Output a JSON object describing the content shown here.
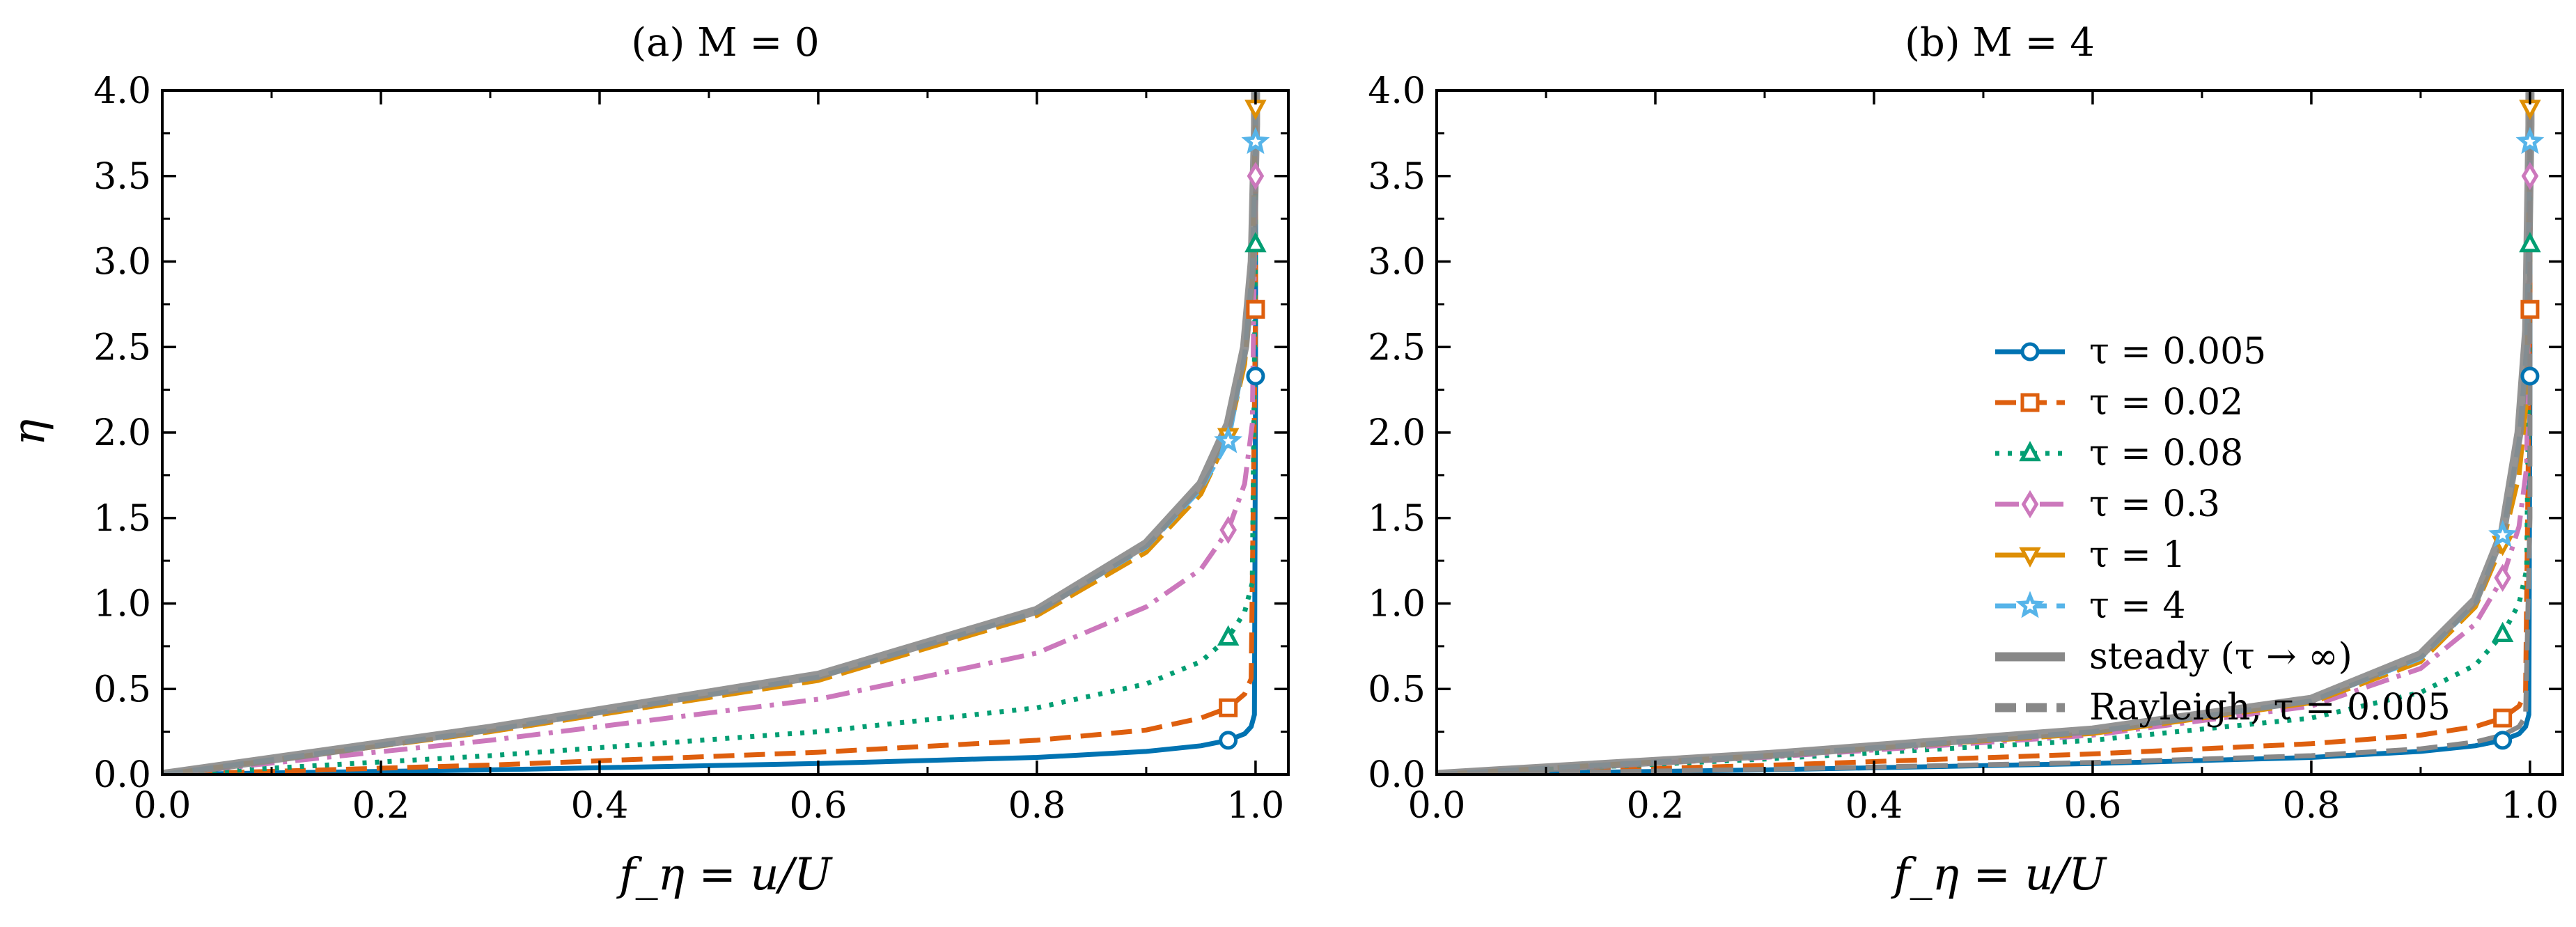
{
  "chart_data": [
    {
      "type": "line",
      "title": "(a) M = 0",
      "xlabel": "f_η = u/U",
      "ylabel": "η",
      "xlim": [
        0.0,
        1.03
      ],
      "ylim": [
        0.0,
        4.0
      ],
      "xticks": [
        "0.0",
        "0.2",
        "0.4",
        "0.6",
        "0.8",
        "1.0"
      ],
      "yticks": [
        "0.0",
        "0.5",
        "1.0",
        "1.5",
        "2.0",
        "2.5",
        "3.0",
        "3.5",
        "4.0"
      ],
      "grid": false,
      "series": [
        {
          "name": "τ = 0.005",
          "color": "#0173b2",
          "dash": "solid",
          "marker": "circle",
          "x": [
            0.0,
            0.3,
            0.6,
            0.8,
            0.9,
            0.95,
            0.975,
            0.99,
            0.996,
            0.999,
            1.0,
            1.0
          ],
          "y": [
            0.0,
            0.027,
            0.064,
            0.1,
            0.135,
            0.168,
            0.2,
            0.238,
            0.28,
            0.35,
            2.33,
            4.0
          ]
        },
        {
          "name": "τ = 0.02",
          "color": "#de5f0e",
          "dash": "dash",
          "marker": "square",
          "x": [
            0.0,
            0.3,
            0.6,
            0.8,
            0.9,
            0.95,
            0.975,
            0.99,
            0.996,
            1.0,
            1.0
          ],
          "y": [
            0.0,
            0.055,
            0.13,
            0.2,
            0.26,
            0.33,
            0.39,
            0.47,
            0.56,
            2.72,
            4.0
          ]
        },
        {
          "name": "τ = 0.08",
          "color": "#029e73",
          "dash": "dot",
          "marker": "triangle-up",
          "x": [
            0.0,
            0.3,
            0.6,
            0.8,
            0.9,
            0.95,
            0.975,
            0.99,
            0.997,
            1.0,
            1.0
          ],
          "y": [
            0.0,
            0.11,
            0.25,
            0.39,
            0.53,
            0.66,
            0.8,
            0.95,
            1.12,
            3.1,
            4.0
          ]
        },
        {
          "name": "τ = 0.3",
          "color": "#cc78bc",
          "dash": "dashdot",
          "marker": "diamond",
          "x": [
            0.0,
            0.3,
            0.6,
            0.8,
            0.9,
            0.95,
            0.975,
            0.99,
            0.997,
            1.0,
            1.0
          ],
          "y": [
            0.0,
            0.2,
            0.44,
            0.71,
            0.98,
            1.2,
            1.43,
            1.7,
            2.05,
            3.5,
            4.0
          ]
        },
        {
          "name": "τ = 1",
          "color": "#de8f05",
          "dash": "longdash",
          "marker": "triangle-down",
          "x": [
            0.0,
            0.3,
            0.6,
            0.8,
            0.9,
            0.95,
            0.975,
            0.99,
            0.997,
            1.0,
            1.0
          ],
          "y": [
            0.0,
            0.25,
            0.55,
            0.93,
            1.3,
            1.64,
            1.98,
            2.4,
            2.9,
            3.9,
            4.0
          ]
        },
        {
          "name": "τ = 4",
          "color": "#56b4e9",
          "dash": "dash",
          "marker": "star",
          "x": [
            0.0,
            0.3,
            0.6,
            0.8,
            0.9,
            0.95,
            0.975,
            0.99,
            0.997,
            1.0,
            1.0
          ],
          "y": [
            0.0,
            0.26,
            0.57,
            0.95,
            1.33,
            1.67,
            1.95,
            2.45,
            2.95,
            3.7,
            4.0
          ]
        },
        {
          "name": "steady (τ → ∞)",
          "color": "#888888",
          "dash": "solid",
          "marker": "none",
          "x": [
            0.0,
            0.3,
            0.6,
            0.8,
            0.9,
            0.95,
            0.975,
            0.99,
            0.997,
            1.0,
            1.0
          ],
          "y": [
            0.0,
            0.27,
            0.58,
            0.96,
            1.35,
            1.7,
            2.05,
            2.5,
            3.0,
            3.8,
            4.0
          ]
        }
      ]
    },
    {
      "type": "line",
      "title": "(b) M = 4",
      "xlabel": "f_η = u/U",
      "ylabel": "",
      "xlim": [
        0.0,
        1.03
      ],
      "ylim": [
        0.0,
        4.0
      ],
      "xticks": [
        "0.0",
        "0.2",
        "0.4",
        "0.6",
        "0.8",
        "1.0"
      ],
      "yticks": [
        "0.0",
        "0.5",
        "1.0",
        "1.5",
        "2.0",
        "2.5",
        "3.0",
        "3.5",
        "4.0"
      ],
      "grid": false,
      "legend_position": "center-right",
      "series": [
        {
          "name": "τ = 0.005",
          "color": "#0173b2",
          "dash": "solid",
          "marker": "circle",
          "x": [
            0.0,
            0.3,
            0.6,
            0.8,
            0.9,
            0.95,
            0.975,
            0.99,
            0.996,
            0.999,
            1.0,
            1.0
          ],
          "y": [
            0.0,
            0.027,
            0.064,
            0.1,
            0.135,
            0.168,
            0.2,
            0.238,
            0.28,
            0.35,
            2.33,
            4.0
          ]
        },
        {
          "name": "τ = 0.02",
          "color": "#de5f0e",
          "dash": "dash",
          "marker": "square",
          "x": [
            0.0,
            0.3,
            0.6,
            0.8,
            0.9,
            0.95,
            0.975,
            0.99,
            0.996,
            1.0,
            1.0
          ],
          "y": [
            0.0,
            0.053,
            0.12,
            0.18,
            0.23,
            0.28,
            0.33,
            0.4,
            0.48,
            2.72,
            4.0
          ]
        },
        {
          "name": "τ = 0.08",
          "color": "#029e73",
          "dash": "dot",
          "marker": "triangle-up",
          "x": [
            0.0,
            0.3,
            0.6,
            0.8,
            0.9,
            0.95,
            0.975,
            0.99,
            0.997,
            1.0,
            1.0
          ],
          "y": [
            0.0,
            0.09,
            0.2,
            0.33,
            0.48,
            0.64,
            0.82,
            1.0,
            1.2,
            3.1,
            4.0
          ]
        },
        {
          "name": "τ = 0.3",
          "color": "#cc78bc",
          "dash": "dashdot",
          "marker": "diamond",
          "x": [
            0.0,
            0.3,
            0.6,
            0.8,
            0.9,
            0.95,
            0.975,
            0.99,
            0.997,
            1.0,
            1.0
          ],
          "y": [
            0.0,
            0.1,
            0.23,
            0.4,
            0.62,
            0.88,
            1.15,
            1.45,
            1.8,
            3.5,
            4.0
          ]
        },
        {
          "name": "τ = 1",
          "color": "#de8f05",
          "dash": "longdash",
          "marker": "triangle-down",
          "x": [
            0.0,
            0.3,
            0.6,
            0.8,
            0.9,
            0.95,
            0.975,
            0.99,
            0.997,
            1.0,
            1.0
          ],
          "y": [
            0.0,
            0.11,
            0.24,
            0.42,
            0.66,
            0.98,
            1.35,
            1.75,
            2.2,
            3.9,
            4.0
          ]
        },
        {
          "name": "τ = 4",
          "color": "#56b4e9",
          "dash": "dash",
          "marker": "star",
          "x": [
            0.0,
            0.3,
            0.6,
            0.8,
            0.9,
            0.95,
            0.975,
            0.99,
            0.997,
            1.0,
            1.0
          ],
          "y": [
            0.0,
            0.11,
            0.25,
            0.43,
            0.68,
            1.0,
            1.4,
            1.95,
            2.5,
            3.7,
            4.0
          ]
        },
        {
          "name": "steady (τ → ∞)",
          "color": "#888888",
          "dash": "solid",
          "marker": "none",
          "x": [
            0.0,
            0.3,
            0.6,
            0.8,
            0.9,
            0.95,
            0.975,
            0.99,
            0.997,
            1.0,
            1.0
          ],
          "y": [
            0.0,
            0.115,
            0.26,
            0.44,
            0.7,
            1.02,
            1.42,
            2.0,
            2.6,
            3.8,
            4.0
          ]
        },
        {
          "name": "Rayleigh, τ = 0.005",
          "color": "#888888",
          "dash": "dash",
          "marker": "none",
          "x": [
            0.0,
            0.3,
            0.6,
            0.8,
            0.9,
            0.95,
            0.975,
            0.99,
            0.996,
            1.0,
            1.0
          ],
          "y": [
            0.0,
            0.03,
            0.07,
            0.11,
            0.15,
            0.19,
            0.23,
            0.28,
            0.34,
            1.5,
            4.0
          ]
        }
      ]
    }
  ]
}
